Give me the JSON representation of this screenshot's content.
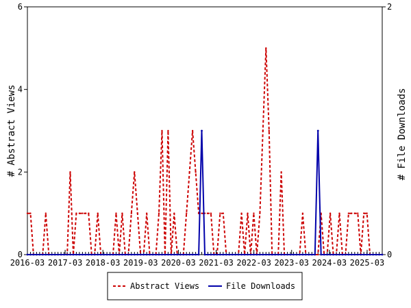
{
  "chart_data": {
    "type": "line",
    "x_ticks": [
      "2016-03",
      "2017-03",
      "2018-03",
      "2019-03",
      "2020-03",
      "2021-03",
      "2022-03",
      "2023-03",
      "2024-03",
      "2025-03"
    ],
    "x_range": [
      0,
      116
    ],
    "y_left": {
      "label": "# Abstract Views",
      "lim": [
        0,
        6
      ],
      "ticks": [
        "0",
        "2",
        "4",
        "6"
      ]
    },
    "y_right": {
      "label": "# File Downloads",
      "lim": [
        0,
        2
      ],
      "ticks": [
        "0",
        "2"
      ]
    },
    "legend_position": "bottom-center",
    "series": [
      {
        "name": "Abstract Views",
        "axis": "left",
        "color": "#cc0000",
        "style": "dashed",
        "values": [
          1,
          1,
          0,
          0,
          0,
          0,
          1,
          0,
          0,
          0,
          0,
          0,
          0,
          0,
          2,
          0,
          1,
          1,
          1,
          1,
          1,
          0,
          0,
          1,
          0,
          0,
          0,
          0,
          0,
          1,
          0,
          1,
          0,
          0,
          1,
          2,
          1,
          0,
          0,
          1,
          0,
          0,
          0,
          1,
          3,
          0,
          3,
          0,
          1,
          0,
          0,
          0,
          1,
          2,
          3,
          2,
          1,
          1,
          1,
          1,
          1,
          0,
          0,
          1,
          1,
          0,
          0,
          0,
          0,
          0,
          1,
          0,
          1,
          0,
          1,
          0,
          1,
          3,
          5,
          3,
          0,
          0,
          0,
          0,
          0,
          0,
          0,
          0,
          0,
          0,
          0,
          0,
          0,
          0,
          0,
          0,
          0,
          0,
          0,
          0,
          0,
          0,
          1,
          0,
          0,
          0,
          0,
          0,
          0,
          0,
          0,
          0,
          0,
          0,
          0,
          0,
          0
        ]
      },
      {
        "name": "File Downloads",
        "axis": "right",
        "color": "#0000aa",
        "style": "solid",
        "spikes": [
          {
            "x": 57,
            "y": 1
          },
          {
            "x": 95,
            "y": 1
          }
        ]
      }
    ],
    "av_spikes_extra": [
      {
        "x": 83,
        "y": 2
      },
      {
        "x": 90,
        "y": 1
      },
      {
        "x": 96,
        "y": 1
      },
      {
        "x": 99,
        "y": 1
      },
      {
        "x": 102,
        "y": 1
      },
      {
        "x": 105,
        "y": 1
      },
      {
        "x": 106,
        "y": 1
      },
      {
        "x": 107,
        "y": 1
      },
      {
        "x": 108,
        "y": 1
      },
      {
        "x": 110,
        "y": 1
      },
      {
        "x": 111,
        "y": 1
      }
    ]
  }
}
